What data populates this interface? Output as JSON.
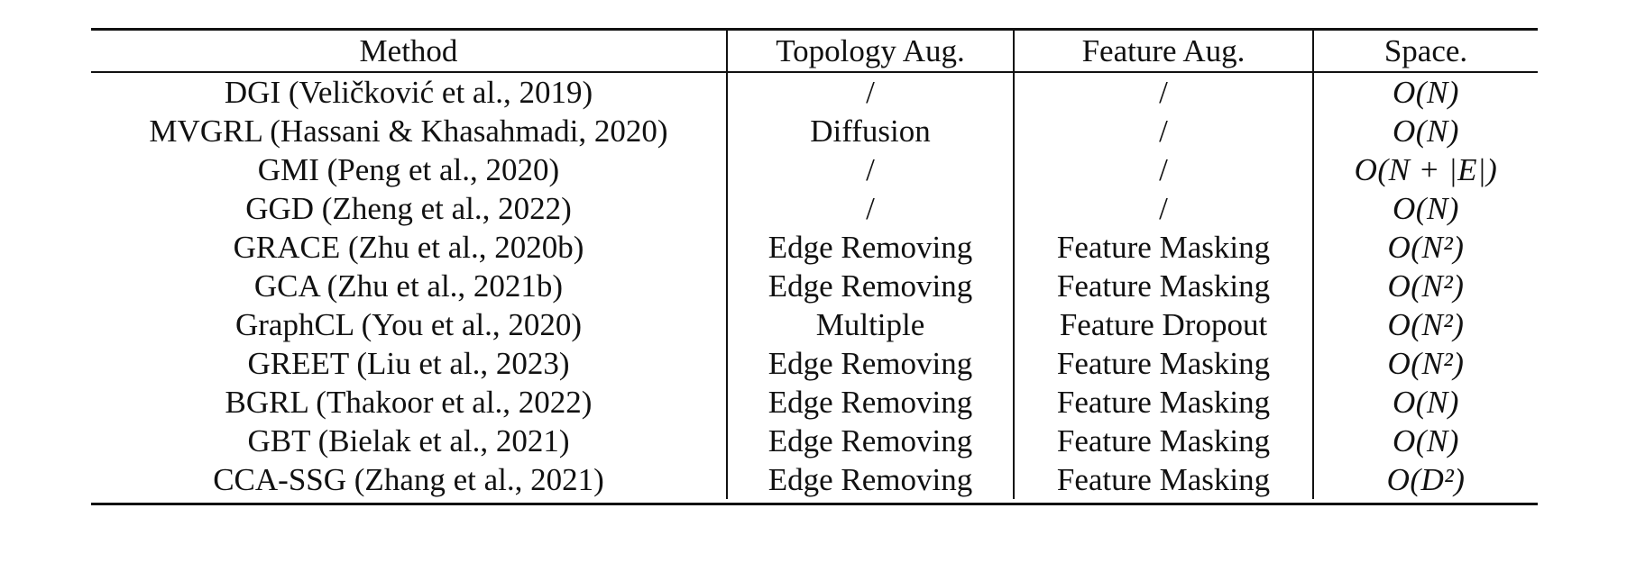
{
  "table": {
    "headers": [
      "Method",
      "Topology Aug.",
      "Feature Aug.",
      "Space."
    ],
    "rows": [
      {
        "method": "DGI (Veličković et al., 2019)",
        "topology": "/",
        "feature": "/",
        "space": "O(N)"
      },
      {
        "method": "MVGRL (Hassani & Khasahmadi, 2020)",
        "topology": "Diffusion",
        "feature": "/",
        "space": "O(N)"
      },
      {
        "method": "GMI (Peng et al., 2020)",
        "topology": "/",
        "feature": "/",
        "space": "O(N + |E|)"
      },
      {
        "method": "GGD (Zheng et al., 2022)",
        "topology": "/",
        "feature": "/",
        "space": "O(N)"
      },
      {
        "method": "GRACE (Zhu et al., 2020b)",
        "topology": "Edge Removing",
        "feature": "Feature Masking",
        "space": "O(N²)"
      },
      {
        "method": "GCA (Zhu et al., 2021b)",
        "topology": "Edge Removing",
        "feature": "Feature Masking",
        "space": "O(N²)"
      },
      {
        "method": "GraphCL (You et al., 2020)",
        "topology": "Multiple",
        "feature": "Feature Dropout",
        "space": "O(N²)"
      },
      {
        "method": "GREET (Liu et al., 2023)",
        "topology": "Edge Removing",
        "feature": "Feature Masking",
        "space": "O(N²)"
      },
      {
        "method": "BGRL (Thakoor et al., 2022)",
        "topology": "Edge Removing",
        "feature": "Feature Masking",
        "space": "O(N)"
      },
      {
        "method": "GBT (Bielak et al., 2021)",
        "topology": "Edge Removing",
        "feature": "Feature Masking",
        "space": "O(N)"
      },
      {
        "method": "CCA-SSG (Zhang et al., 2021)",
        "topology": "Edge Removing",
        "feature": "Feature Masking",
        "space": "O(D²)"
      }
    ]
  }
}
